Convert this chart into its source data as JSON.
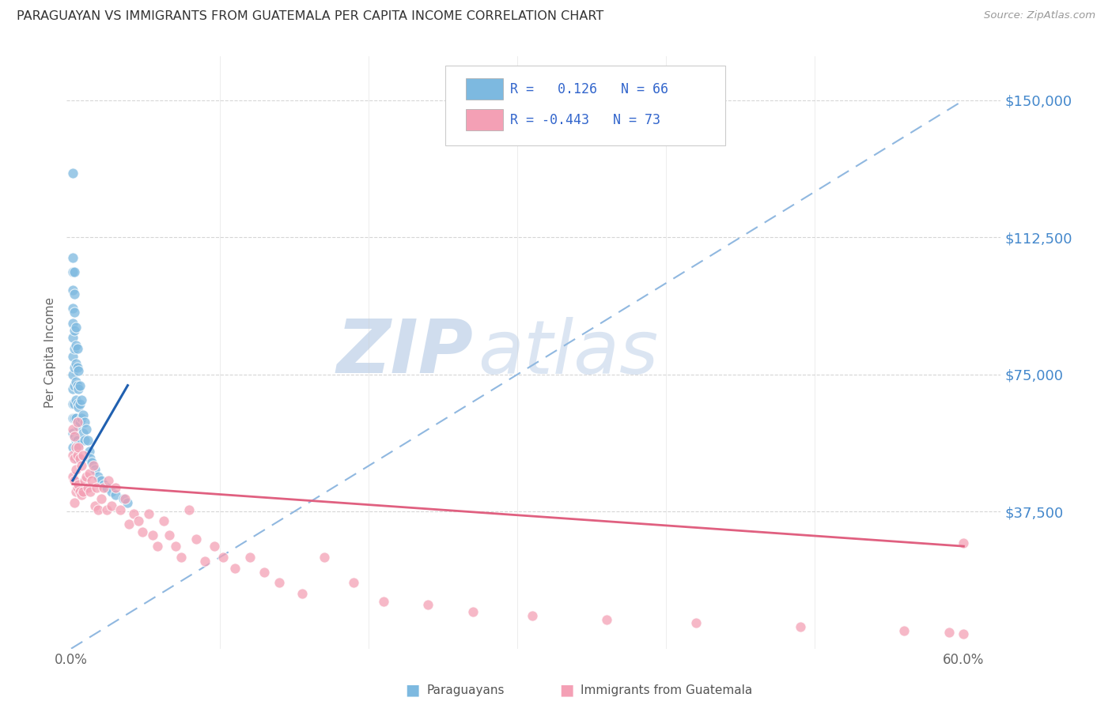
{
  "title": "PARAGUAYAN VS IMMIGRANTS FROM GUATEMALA PER CAPITA INCOME CORRELATION CHART",
  "source": "Source: ZipAtlas.com",
  "ylabel": "Per Capita Income",
  "ytick_labels": [
    "$37,500",
    "$75,000",
    "$112,500",
    "$150,000"
  ],
  "ytick_values": [
    37500,
    75000,
    112500,
    150000
  ],
  "y_min": 0,
  "y_max": 162000,
  "x_min": -0.003,
  "x_max": 0.625,
  "legend_label1": "Paraguayans",
  "legend_label2": "Immigrants from Guatemala",
  "color_blue": "#7db9e0",
  "color_pink": "#f4a0b5",
  "color_blue_line": "#2060b0",
  "color_pink_line": "#e06080",
  "color_dashed": "#90b8e0",
  "watermark_zip": "ZIP",
  "watermark_atlas": "atlas",
  "paraguayan_x": [
    0.001,
    0.001,
    0.001,
    0.001,
    0.001,
    0.001,
    0.001,
    0.001,
    0.001,
    0.001,
    0.001,
    0.001,
    0.001,
    0.001,
    0.002,
    0.002,
    0.002,
    0.002,
    0.002,
    0.002,
    0.002,
    0.002,
    0.002,
    0.002,
    0.003,
    0.003,
    0.003,
    0.003,
    0.003,
    0.003,
    0.003,
    0.004,
    0.004,
    0.004,
    0.004,
    0.004,
    0.004,
    0.004,
    0.005,
    0.005,
    0.005,
    0.005,
    0.005,
    0.006,
    0.006,
    0.006,
    0.007,
    0.007,
    0.008,
    0.008,
    0.009,
    0.009,
    0.01,
    0.011,
    0.012,
    0.013,
    0.014,
    0.016,
    0.018,
    0.02,
    0.022,
    0.024,
    0.027,
    0.03,
    0.035,
    0.038
  ],
  "paraguayan_y": [
    130000,
    107000,
    103000,
    98000,
    93000,
    89000,
    85000,
    80000,
    75000,
    71000,
    67000,
    63000,
    59000,
    55000,
    103000,
    97000,
    92000,
    87000,
    82000,
    77000,
    72000,
    67000,
    63000,
    58000,
    88000,
    83000,
    78000,
    73000,
    68000,
    63000,
    57000,
    82000,
    77000,
    72000,
    67000,
    62000,
    57000,
    52000,
    76000,
    71000,
    66000,
    61000,
    56000,
    72000,
    67000,
    62000,
    68000,
    63000,
    64000,
    59000,
    62000,
    57000,
    60000,
    57000,
    54000,
    52000,
    51000,
    49000,
    47000,
    46000,
    45000,
    44000,
    43000,
    42000,
    41000,
    40000
  ],
  "guatemala_x": [
    0.001,
    0.001,
    0.001,
    0.002,
    0.002,
    0.002,
    0.002,
    0.003,
    0.003,
    0.003,
    0.004,
    0.004,
    0.004,
    0.005,
    0.005,
    0.006,
    0.006,
    0.007,
    0.007,
    0.008,
    0.008,
    0.009,
    0.01,
    0.011,
    0.012,
    0.013,
    0.014,
    0.015,
    0.016,
    0.017,
    0.018,
    0.02,
    0.022,
    0.024,
    0.025,
    0.027,
    0.03,
    0.033,
    0.036,
    0.039,
    0.042,
    0.045,
    0.048,
    0.052,
    0.055,
    0.058,
    0.062,
    0.066,
    0.07,
    0.074,
    0.079,
    0.084,
    0.09,
    0.096,
    0.102,
    0.11,
    0.12,
    0.13,
    0.14,
    0.155,
    0.17,
    0.19,
    0.21,
    0.24,
    0.27,
    0.31,
    0.36,
    0.42,
    0.49,
    0.56,
    0.59,
    0.6,
    0.6
  ],
  "guatemala_y": [
    60000,
    53000,
    47000,
    58000,
    52000,
    46000,
    40000,
    55000,
    49000,
    43000,
    62000,
    53000,
    44000,
    55000,
    45000,
    52000,
    43000,
    50000,
    42000,
    53000,
    43000,
    46000,
    47000,
    44000,
    48000,
    43000,
    46000,
    50000,
    39000,
    44000,
    38000,
    41000,
    44000,
    38000,
    46000,
    39000,
    44000,
    38000,
    41000,
    34000,
    37000,
    35000,
    32000,
    37000,
    31000,
    28000,
    35000,
    31000,
    28000,
    25000,
    38000,
    30000,
    24000,
    28000,
    25000,
    22000,
    25000,
    21000,
    18000,
    15000,
    25000,
    18000,
    13000,
    12000,
    10000,
    9000,
    8000,
    7000,
    6000,
    5000,
    4500,
    4000,
    29000
  ]
}
